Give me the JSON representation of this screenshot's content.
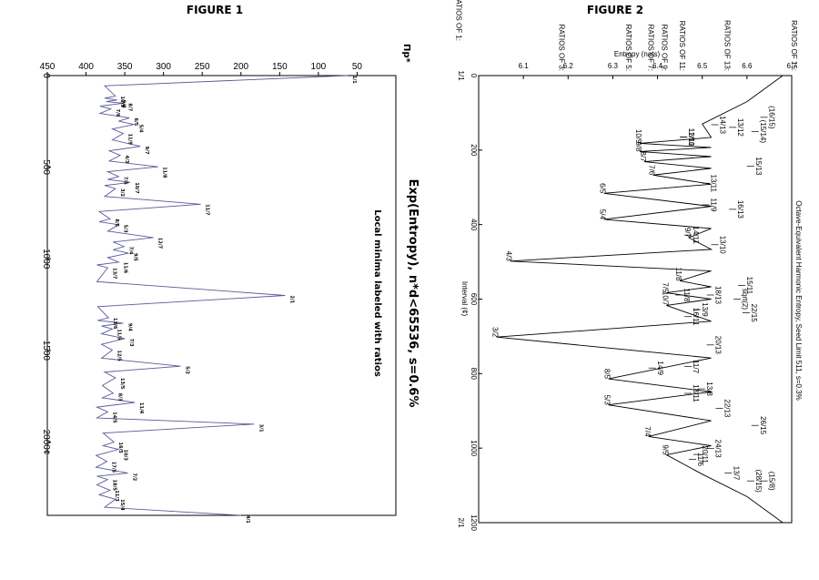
{
  "figures": {
    "figure1_title": "FIGURE 1",
    "figure2_title": "FIGURE 2"
  },
  "chart_data": [
    {
      "type": "line",
      "title": "Exp(Entropy), n*d<65536, s=0.6%",
      "subtitle": "Local minima labeled with ratios",
      "xlabel": "",
      "ylabel": "Πp*",
      "xlim": [
        0,
        2400
      ],
      "ylim": [
        0,
        450
      ],
      "x_ticks": [
        0,
        500,
        1000,
        1500,
        2000
      ],
      "x_tick_labels": [
        "0",
        "500",
        "1000",
        "1500",
        "2000¢"
      ],
      "y_ticks": [
        50,
        100,
        150,
        200,
        250,
        300,
        350,
        400,
        450
      ],
      "series_color": "#5a5a9a",
      "minima": [
        {
          "x": 0,
          "y": 62,
          "label": "1/1"
        },
        {
          "x": 112,
          "y": 362,
          "label": "10/9"
        },
        {
          "x": 133,
          "y": 360,
          "label": "9/8"
        },
        {
          "x": 151,
          "y": 352,
          "label": "8/7"
        },
        {
          "x": 182,
          "y": 368,
          "label": "7/6"
        },
        {
          "x": 231,
          "y": 344,
          "label": "6/5"
        },
        {
          "x": 267,
          "y": 338,
          "label": "5/4"
        },
        {
          "x": 316,
          "y": 352,
          "label": "11/9"
        },
        {
          "x": 386,
          "y": 330,
          "label": "9/7"
        },
        {
          "x": 435,
          "y": 356,
          "label": "4/3"
        },
        {
          "x": 498,
          "y": 307,
          "label": "11/8"
        },
        {
          "x": 551,
          "y": 358,
          "label": "7/5"
        },
        {
          "x": 583,
          "y": 343,
          "label": "10/7"
        },
        {
          "x": 617,
          "y": 362,
          "label": "3/2"
        },
        {
          "x": 702,
          "y": 252,
          "label": "11/7"
        },
        {
          "x": 782,
          "y": 369,
          "label": "8/5"
        },
        {
          "x": 814,
          "y": 358,
          "label": "5/3"
        },
        {
          "x": 884,
          "y": 313,
          "label": "12/7"
        },
        {
          "x": 933,
          "y": 351,
          "label": "7/4"
        },
        {
          "x": 969,
          "y": 345,
          "label": "9/5"
        },
        {
          "x": 1018,
          "y": 358,
          "label": "11/6"
        },
        {
          "x": 1049,
          "y": 372,
          "label": "13/7"
        },
        {
          "x": 1200,
          "y": 143,
          "label": "2/1"
        },
        {
          "x": 1322,
          "y": 371,
          "label": "13/6"
        },
        {
          "x": 1351,
          "y": 352,
          "label": "9/4"
        },
        {
          "x": 1383,
          "y": 366,
          "label": "11/5"
        },
        {
          "x": 1435,
          "y": 350,
          "label": "7/3"
        },
        {
          "x": 1498,
          "y": 366,
          "label": "12/5"
        },
        {
          "x": 1586,
          "y": 278,
          "label": "5/2"
        },
        {
          "x": 1650,
          "y": 362,
          "label": "13/5"
        },
        {
          "x": 1733,
          "y": 365,
          "label": "8/3"
        },
        {
          "x": 1784,
          "y": 337,
          "label": "11/4"
        },
        {
          "x": 1835,
          "y": 372,
          "label": "14/5"
        },
        {
          "x": 1902,
          "y": 183,
          "label": "3/1"
        },
        {
          "x": 2000,
          "y": 364,
          "label": "16/5"
        },
        {
          "x": 2040,
          "y": 358,
          "label": "10/3"
        },
        {
          "x": 2106,
          "y": 373,
          "label": "17/5"
        },
        {
          "x": 2169,
          "y": 346,
          "label": "7/2"
        },
        {
          "x": 2204,
          "y": 372,
          "label": "18/5"
        },
        {
          "x": 2263,
          "y": 369,
          "label": "11/3"
        },
        {
          "x": 2312,
          "y": 362,
          "label": "15/4"
        },
        {
          "x": 2400,
          "y": 200,
          "label": "4/1"
        }
      ]
    },
    {
      "type": "line",
      "title": "Octave-Equivalent Harmonic Entropy, Seed Limit 511, s=0.3%",
      "xlabel": "Interval (¢)",
      "ylabel": "Entropy (nats)",
      "xlim": [
        0,
        1200
      ],
      "ylim": [
        6.0,
        6.7
      ],
      "x_ticks": [
        0,
        200,
        400,
        600,
        800,
        1000,
        1200
      ],
      "x_end_labels": [
        "1/1",
        "2/1"
      ],
      "y_ticks": [
        6.1,
        6.2,
        6.3,
        6.4,
        6.5,
        6.6,
        6.7
      ],
      "y_tick_labels": [
        "6.1",
        "6.2",
        "6.3",
        "6.4",
        "6.5",
        "6.6",
        "6.7"
      ],
      "series_color": "#000000",
      "minima": [
        {
          "x": 182,
          "y": 6.36,
          "label": "10/9"
        },
        {
          "x": 204,
          "y": 6.36,
          "label": "9/8"
        },
        {
          "x": 231,
          "y": 6.37,
          "label": "8/7"
        },
        {
          "x": 267,
          "y": 6.39,
          "label": "7/6"
        },
        {
          "x": 316,
          "y": 6.28,
          "label": "6/5"
        },
        {
          "x": 386,
          "y": 6.28,
          "label": "5/4"
        },
        {
          "x": 435,
          "y": 6.47,
          "label": "9/7"
        },
        {
          "x": 498,
          "y": 6.07,
          "label": "4/3"
        },
        {
          "x": 551,
          "y": 6.45,
          "label": "11/8"
        },
        {
          "x": 583,
          "y": 6.42,
          "label": "7/5"
        },
        {
          "x": 617,
          "y": 6.42,
          "label": "10/7"
        },
        {
          "x": 702,
          "y": 6.04,
          "label": "3/2"
        },
        {
          "x": 814,
          "y": 6.29,
          "label": "8/5"
        },
        {
          "x": 884,
          "y": 6.29,
          "label": "5/3"
        },
        {
          "x": 969,
          "y": 6.38,
          "label": "7/4"
        },
        {
          "x": 1018,
          "y": 6.42,
          "label": "9/5"
        }
      ],
      "arrow_labels": [
        {
          "x": 132,
          "y": 6.52,
          "label": "14/13"
        },
        {
          "x": 139,
          "y": 6.56,
          "label": "13/12"
        },
        {
          "x": 150,
          "y": 6.61,
          "label": "(15/14)"
        },
        {
          "x": 112,
          "y": 6.63,
          "label": "(16/15)"
        },
        {
          "x": 165,
          "y": 6.45,
          "label": "12/11"
        },
        {
          "x": 165,
          "y": 6.45,
          "label": "11/10"
        },
        {
          "x": 243,
          "y": 6.6,
          "label": "15/13"
        },
        {
          "x": 289,
          "y": 6.5,
          "label": "13/11"
        },
        {
          "x": 347,
          "y": 6.5,
          "label": "11/9"
        },
        {
          "x": 359,
          "y": 6.56,
          "label": "16/13"
        },
        {
          "x": 454,
          "y": 6.52,
          "label": "13/10"
        },
        {
          "x": 428,
          "y": 6.46,
          "label": "14/11"
        },
        {
          "x": 563,
          "y": 6.58,
          "label": "15/11"
        },
        {
          "x": 589,
          "y": 6.44,
          "label": "11/8"
        },
        {
          "x": 589,
          "y": 6.51,
          "label": "18/13"
        },
        {
          "x": 600,
          "y": 6.57,
          "label": "sqrt(2)"
        },
        {
          "x": 628,
          "y": 6.48,
          "label": "13/9"
        },
        {
          "x": 637,
          "y": 6.59,
          "label": "22/15"
        },
        {
          "x": 647,
          "y": 6.46,
          "label": "16/11"
        },
        {
          "x": 723,
          "y": 6.51,
          "label": "20/13"
        },
        {
          "x": 781,
          "y": 6.46,
          "label": "11/7"
        },
        {
          "x": 785,
          "y": 6.38,
          "label": "14/9"
        },
        {
          "x": 841,
          "y": 6.49,
          "label": "13/8"
        },
        {
          "x": 853,
          "y": 6.46,
          "label": "18/11"
        },
        {
          "x": 893,
          "y": 6.53,
          "label": "22/13"
        },
        {
          "x": 939,
          "y": 6.61,
          "label": "26/15"
        },
        {
          "x": 1001,
          "y": 6.51,
          "label": "24/13"
        },
        {
          "x": 1017,
          "y": 6.48,
          "label": "20/11"
        },
        {
          "x": 1030,
          "y": 6.47,
          "label": "11/6"
        },
        {
          "x": 1067,
          "y": 6.55,
          "label": "13/7"
        },
        {
          "x": 1088,
          "y": 6.6,
          "label": "(28/15)"
        },
        {
          "x": 1088,
          "y": 6.63,
          "label": "(15/8)"
        }
      ],
      "ratio_family_labels": [
        "RATIOS OF 15:",
        "RATIOS OF 13:",
        "RATIOS OF 11:",
        "RATIOS OF 9:",
        "RATIOS OF 7:",
        "RATIOS OF 5:",
        "RATIOS OF 3:",
        "RATIOS OF 1:"
      ],
      "ratio_family_levels": [
        6.7,
        6.55,
        6.45,
        6.41,
        6.38,
        6.33,
        6.18,
        5.95
      ]
    }
  ]
}
